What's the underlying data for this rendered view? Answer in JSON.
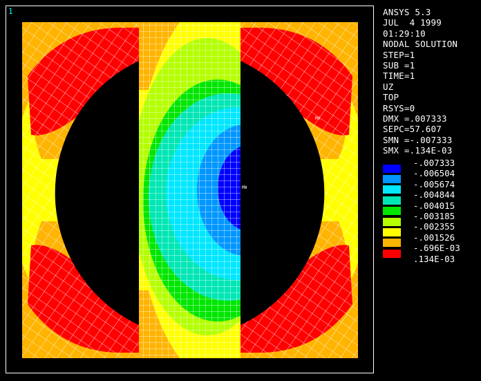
{
  "window_number": "1",
  "info_lines": [
    "ANSYS 5.3",
    "JUL  4 1999",
    "01:29:10",
    "NODAL SOLUTION",
    "STEP=1",
    "SUB =1",
    "TIME=1",
    "UZ",
    "TOP",
    "RSYS=0",
    "DMX =.007333",
    "SEPC=57.607",
    "SMN =-.007333",
    "SMX =.134E-03"
  ],
  "legend": [
    {
      "label": "-.007333",
      "color": "#0000ff"
    },
    {
      "label": "-.006504",
      "color": "#0096ff"
    },
    {
      "label": "-.005674",
      "color": "#00e6ff"
    },
    {
      "label": "-.004844",
      "color": "#00e6b4"
    },
    {
      "label": "-.004015",
      "color": "#00e600"
    },
    {
      "label": "-.003185",
      "color": "#b4ff00"
    },
    {
      "label": "-.002355",
      "color": "#ffff00"
    },
    {
      "label": "-.001526",
      "color": "#ffb400"
    },
    {
      "label": "-.696E-03",
      "color": "#ff0000"
    },
    {
      "label": ".134E-03",
      "color": null
    }
  ],
  "markers": {
    "min": "MN",
    "max": "MX"
  }
}
